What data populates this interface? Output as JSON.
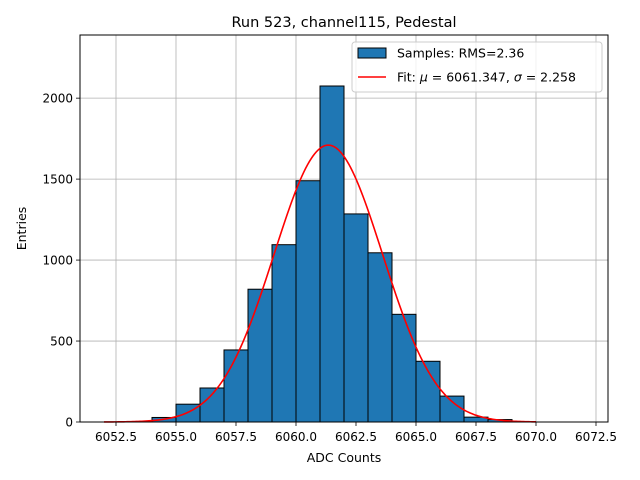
{
  "chart_data": {
    "type": "bar",
    "title": "Run 523, channel115, Pedestal",
    "xlabel": "ADC Counts",
    "ylabel": "Entries",
    "xlim": [
      6051.0,
      6073.0
    ],
    "ylim": [
      0,
      2390
    ],
    "grid": true,
    "legend_position": "top-right",
    "x_ticks": [
      6052.5,
      6055.0,
      6057.5,
      6060.0,
      6062.5,
      6065.0,
      6067.5,
      6070.0,
      6072.5
    ],
    "x_tick_labels": [
      "6052.5",
      "6055.0",
      "6057.5",
      "6060.0",
      "6062.5",
      "6065.0",
      "6067.5",
      "6070.0",
      "6072.5"
    ],
    "y_ticks": [
      0,
      500,
      1000,
      1500,
      2000
    ],
    "y_tick_labels": [
      "0",
      "500",
      "1000",
      "1500",
      "2000"
    ],
    "histogram": {
      "name": "Samples: RMS=2.36",
      "color": "#1f77b4",
      "edgecolor": "#000000",
      "bin_edges": [
        6054,
        6055,
        6056,
        6057,
        6058,
        6059,
        6060,
        6061,
        6062,
        6063,
        6064,
        6065,
        6066,
        6067,
        6068,
        6069
      ],
      "counts": [
        28,
        110,
        210,
        445,
        820,
        1095,
        1490,
        2075,
        1285,
        1045,
        665,
        375,
        160,
        30,
        15
      ]
    },
    "fit": {
      "name": "Fit: μ = 6061.347, σ = 2.258",
      "label_prefix": "Fit: ",
      "mu_symbol": "μ",
      "mu_text": " = 6061.347, ",
      "sigma_symbol": "σ",
      "sigma_text": " = 2.258",
      "color": "#ff0000",
      "mu": 6061.347,
      "sigma": 2.258,
      "amplitude": 1710,
      "x_range": [
        6052.0,
        6070.0
      ]
    }
  }
}
